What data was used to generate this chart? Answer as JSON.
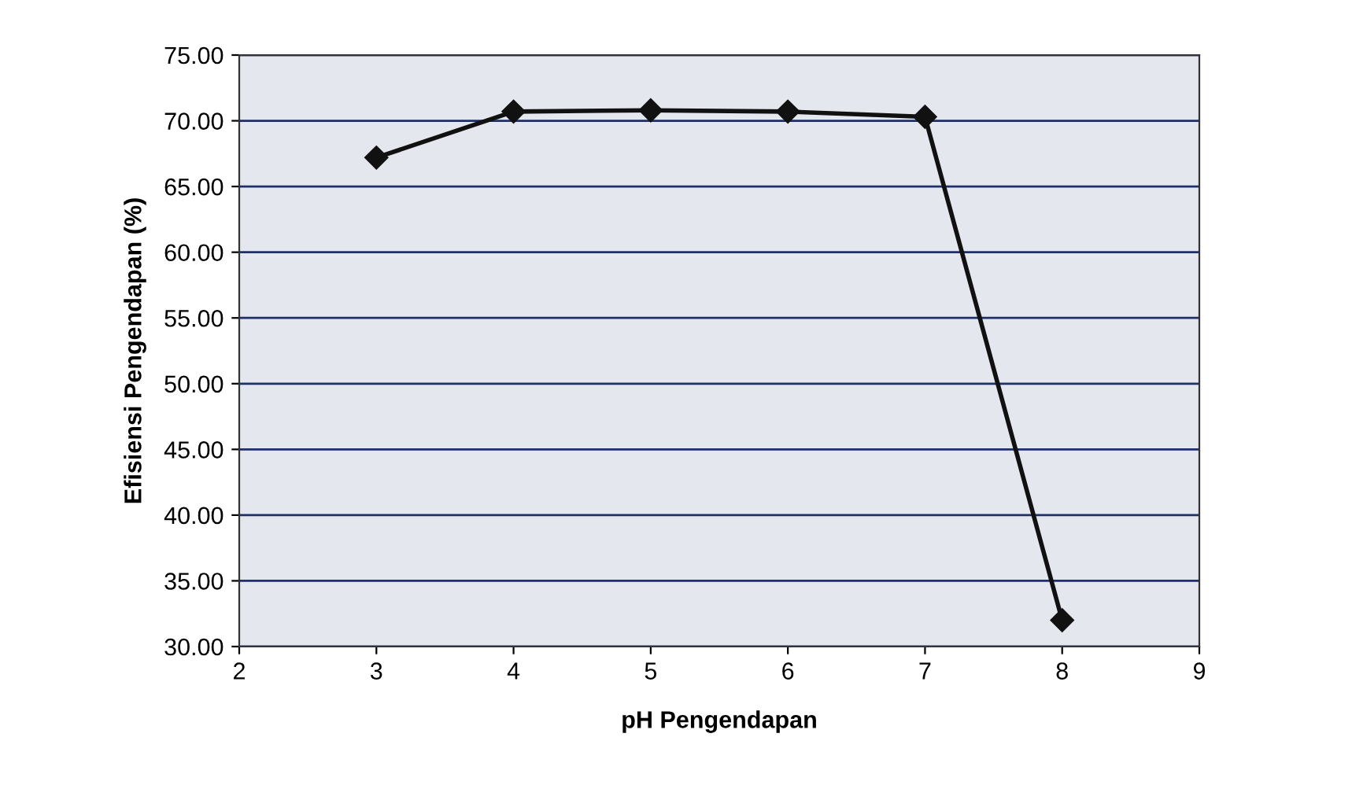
{
  "chart_data": {
    "type": "line",
    "xlabel": "pH Pengendapan",
    "ylabel": "Efisiensi Pengendapan (%)",
    "x": [
      3,
      4,
      5,
      6,
      7,
      8
    ],
    "series": [
      {
        "color": "#111111",
        "values": [
          67.2,
          70.7,
          70.8,
          70.7,
          70.3,
          32.0
        ]
      }
    ],
    "xlim": [
      2,
      9
    ],
    "xticks": [
      2,
      3,
      4,
      5,
      6,
      7,
      8,
      9
    ],
    "ylim": [
      30,
      75
    ],
    "yticks": [
      {
        "value": 30,
        "label": "30.00"
      },
      {
        "value": 35,
        "label": "35.00"
      },
      {
        "value": 40,
        "label": "40.00"
      },
      {
        "value": 45,
        "label": "45.00"
      },
      {
        "value": 50,
        "label": "50.00"
      },
      {
        "value": 55,
        "label": "55.00"
      },
      {
        "value": 60,
        "label": "60.00"
      },
      {
        "value": 65,
        "label": "65.00"
      },
      {
        "value": 70,
        "label": "70.00"
      },
      {
        "value": 75,
        "label": "75.00"
      }
    ],
    "grid": "y",
    "marker": "diamond",
    "line_style": "solid",
    "legend": false
  }
}
